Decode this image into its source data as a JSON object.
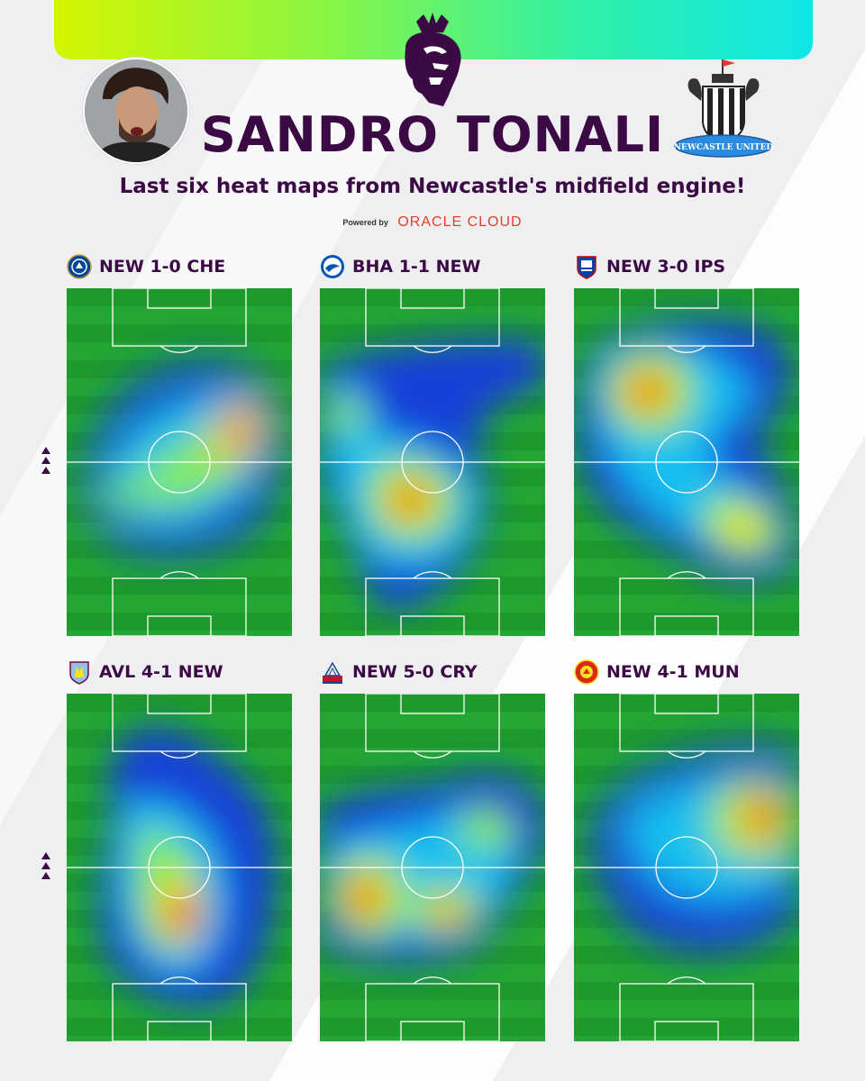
{
  "header": {
    "player_name": "SANDRO TONALI",
    "subtitle": "Last six heat maps from Newcastle's midfield engine!",
    "sponsor_prefix": "Powered by",
    "sponsor_brand": "ORACLE CLOUD",
    "league_logo_icon": "premier-league-lion-icon",
    "club_crest_icon": "newcastle-united-crest-icon",
    "club_crest_text": "NEWCASTLE UNITED"
  },
  "colors": {
    "primary": "#3b0a45",
    "pitch": "#1f9e2e",
    "sponsor": "#e0412b"
  },
  "matches": [
    {
      "title": "NEW 1-0 CHE",
      "badge_icon": "chelsea-badge-icon"
    },
    {
      "title": "BHA 1-1 NEW",
      "badge_icon": "brighton-badge-icon"
    },
    {
      "title": "NEW 3-0 IPS",
      "badge_icon": "ipswich-badge-icon"
    },
    {
      "title": "AVL 4-1 NEW",
      "badge_icon": "aston-villa-badge-icon"
    },
    {
      "title": "NEW 5-0 CRY",
      "badge_icon": "crystal-palace-badge-icon"
    },
    {
      "title": "NEW 4-1 MUN",
      "badge_icon": "man-utd-badge-icon"
    }
  ],
  "attack_direction_icon": "up-arrows-icon"
}
